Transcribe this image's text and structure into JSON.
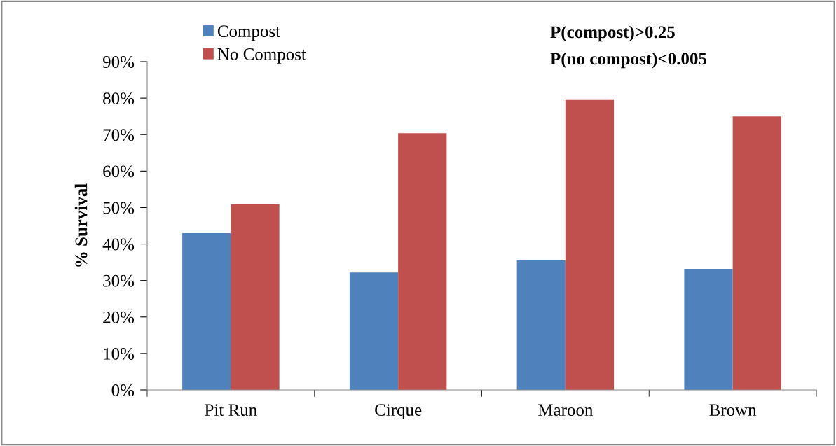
{
  "chart_data": {
    "type": "bar",
    "ylabel": "% Survival",
    "categories": [
      "Pit Run",
      "Cirque",
      "Maroon",
      "Brown"
    ],
    "series": [
      {
        "name": "Compost",
        "color": "#4f81bd",
        "values": [
          43.0,
          32.2,
          35.5,
          33.2
        ]
      },
      {
        "name": "No Compost",
        "color": "#c0504d",
        "values": [
          50.9,
          70.4,
          79.5,
          75.0
        ]
      }
    ],
    "ylim": [
      0,
      90
    ],
    "yticks": [
      {
        "value": 0,
        "label": "0%"
      },
      {
        "value": 10,
        "label": "10%"
      },
      {
        "value": 20,
        "label": "20%"
      },
      {
        "value": 30,
        "label": "30%"
      },
      {
        "value": 40,
        "label": "40%"
      },
      {
        "value": 50,
        "label": "50%"
      },
      {
        "value": 60,
        "label": "60%"
      },
      {
        "value": 70,
        "label": "70%"
      },
      {
        "value": 80,
        "label": "80%"
      },
      {
        "value": 90,
        "label": "90%"
      }
    ],
    "annotations": [
      "P(compost)>0.25",
      "P(no compost)<0.005"
    ],
    "legend": "top left",
    "grid": false
  }
}
